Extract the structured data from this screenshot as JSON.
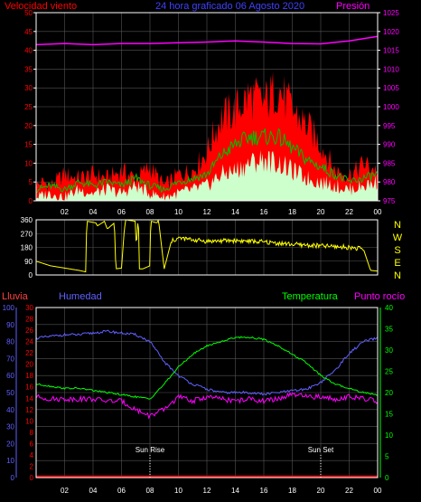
{
  "colors": {
    "background": "#000000",
    "frame": "#ffffff",
    "grid": "#555555",
    "wind_red": "#ff0000",
    "wind_green": "#00c000",
    "wind_light": "#ccffcc",
    "pressure": "#ff00ff",
    "direction": "#ffff00",
    "rain": "#ff0000",
    "humidity": "#6060ff",
    "temperature": "#00ff00",
    "dewpoint": "#ff00ff",
    "sun": "#ffffff"
  },
  "chart_data": [
    {
      "type": "area",
      "title": "24 hora graficado 06 Agosto 2020",
      "left_label": "Velocidad viento",
      "right_label": "Presión",
      "x_ticks": [
        "02",
        "04",
        "06",
        "08",
        "10",
        "12",
        "14",
        "16",
        "18",
        "20",
        "22",
        "00"
      ],
      "y_left_ticks": [
        0,
        5,
        10,
        15,
        20,
        25,
        30,
        35,
        40,
        45,
        50
      ],
      "y_right_ticks": [
        975,
        980,
        985,
        990,
        995,
        1000,
        1005,
        1010,
        1015,
        1020,
        1025
      ],
      "ylim_left": [
        0,
        50
      ],
      "ylim_right": [
        975,
        1025
      ],
      "xlim": [
        0,
        24
      ],
      "series": [
        {
          "name": "gust",
          "x": [
            0,
            0.5,
            1,
            2,
            3,
            4,
            5,
            6,
            7,
            8,
            9,
            10,
            11,
            12,
            12.5,
            13,
            14,
            15,
            16,
            17,
            18,
            19,
            20,
            21,
            22,
            22.5,
            23,
            24
          ],
          "values": [
            4,
            5,
            4,
            7,
            6,
            7,
            6,
            8,
            6,
            9,
            4,
            7,
            8,
            13,
            18,
            22,
            24,
            28,
            26,
            30,
            24,
            20,
            15,
            8,
            7,
            8,
            10,
            8
          ]
        },
        {
          "name": "average",
          "x": [
            0,
            1,
            2,
            3,
            4,
            5,
            6,
            7,
            8,
            9,
            10,
            11,
            12,
            13,
            14,
            15,
            16,
            17,
            18,
            19,
            20,
            21,
            22,
            23,
            24
          ],
          "values": [
            3,
            4,
            3,
            5,
            4,
            5,
            4,
            6,
            4,
            3,
            5,
            6,
            7,
            12,
            15,
            17,
            17,
            17,
            14,
            11,
            9,
            7,
            5,
            6,
            7
          ]
        },
        {
          "name": "minimum",
          "x": [
            0,
            1,
            2,
            3,
            4,
            5,
            6,
            7,
            8,
            9,
            10,
            11,
            12,
            13,
            14,
            15,
            16,
            17,
            18,
            19,
            20,
            21,
            22,
            23,
            24
          ],
          "values": [
            1,
            2,
            1,
            3,
            2,
            3,
            2,
            4,
            2,
            1,
            2,
            3,
            4,
            7,
            8,
            10,
            11,
            10,
            8,
            6,
            5,
            4,
            3,
            4,
            5
          ]
        },
        {
          "name": "pressure",
          "x": [
            0,
            2,
            4,
            6,
            8,
            10,
            12,
            14,
            16,
            18,
            20,
            22,
            24
          ],
          "values": [
            1016.5,
            1016.8,
            1016.5,
            1016.8,
            1016.8,
            1017,
            1017.2,
            1017.5,
            1017.2,
            1016.8,
            1016.7,
            1017.5,
            1018.7
          ]
        }
      ]
    },
    {
      "type": "line",
      "right_ticks": [
        "N",
        "W",
        "S",
        "E",
        "N"
      ],
      "y_left_ticks": [
        0,
        90,
        180,
        270,
        360
      ],
      "ylim": [
        0,
        360
      ],
      "xlim": [
        0,
        24
      ],
      "series": [
        {
          "name": "direction",
          "x": [
            0,
            1,
            2,
            3,
            3.5,
            3.55,
            3.6,
            4.2,
            4.3,
            4.8,
            5,
            5.5,
            5.6,
            6,
            6.2,
            6.3,
            7,
            7.05,
            7.1,
            7.2,
            7.25,
            7.5,
            8.0,
            8.05,
            8.1,
            8.5,
            8.6,
            9,
            9.5,
            10,
            11,
            12,
            14,
            16,
            18,
            20,
            22,
            23,
            23.5,
            24
          ],
          "values": [
            90,
            60,
            45,
            30,
            20,
            340,
            350,
            340,
            320,
            350,
            300,
            340,
            40,
            45,
            300,
            360,
            350,
            40,
            360,
            300,
            40,
            40,
            60,
            340,
            350,
            340,
            360,
            40,
            220,
            240,
            230,
            220,
            225,
            215,
            200,
            190,
            180,
            170,
            30,
            25
          ]
        }
      ]
    },
    {
      "type": "line",
      "left_labels": [
        "Lluvia",
        "Humedad"
      ],
      "right_labels": [
        "Temperatura",
        "Punto rocío"
      ],
      "humidity_ticks": [
        0,
        10,
        20,
        30,
        40,
        50,
        60,
        70,
        80,
        90,
        100
      ],
      "rain_ticks": [
        0,
        2,
        4,
        6,
        8,
        10,
        12,
        14,
        16,
        18,
        20,
        22,
        24,
        26,
        28,
        30
      ],
      "temp_ticks": [
        0,
        5,
        10,
        15,
        20,
        25,
        30,
        35,
        40
      ],
      "annotations": [
        "Sun Rise",
        "Sun Set"
      ],
      "sun_times": [
        8,
        20
      ],
      "xlim": [
        0,
        24
      ],
      "series": [
        {
          "name": "humidity",
          "x": [
            0,
            1,
            2,
            3,
            4,
            5,
            6,
            7,
            8,
            9,
            10,
            11,
            12,
            13,
            14,
            15,
            16,
            17,
            18,
            19,
            20,
            21,
            22,
            23,
            24
          ],
          "values": [
            82,
            83,
            84,
            84,
            85,
            86,
            85,
            84,
            80,
            68,
            60,
            55,
            52,
            50,
            50,
            50,
            49,
            50,
            51,
            52,
            56,
            63,
            73,
            80,
            82
          ]
        },
        {
          "name": "temperature",
          "x": [
            0,
            1,
            2,
            3,
            4,
            5,
            6,
            7,
            8,
            9,
            10,
            11,
            12,
            13,
            14,
            15,
            16,
            17,
            18,
            19,
            20,
            21,
            22,
            23,
            24
          ],
          "values": [
            22,
            21.5,
            21,
            21,
            20.5,
            20,
            19.5,
            19,
            18.5,
            22,
            26,
            29,
            31,
            32,
            33,
            33,
            32.5,
            31,
            29,
            27,
            24,
            22,
            21,
            20,
            19.5
          ]
        },
        {
          "name": "dewpoint",
          "x": [
            0,
            1,
            2,
            3,
            4,
            5,
            6,
            7,
            8,
            9,
            10,
            11,
            12,
            13,
            14,
            15,
            16,
            17,
            18,
            19,
            20,
            21,
            22,
            23,
            24
          ],
          "values": [
            19,
            18.5,
            18.5,
            18.5,
            18.5,
            18,
            18,
            16,
            14.5,
            16,
            19,
            18,
            19,
            18.5,
            18,
            18.5,
            18,
            18.5,
            19.5,
            19,
            19,
            18.5,
            19,
            18.5,
            18
          ]
        },
        {
          "name": "rain",
          "x": [
            0,
            24
          ],
          "values": [
            0,
            0
          ]
        }
      ]
    }
  ]
}
